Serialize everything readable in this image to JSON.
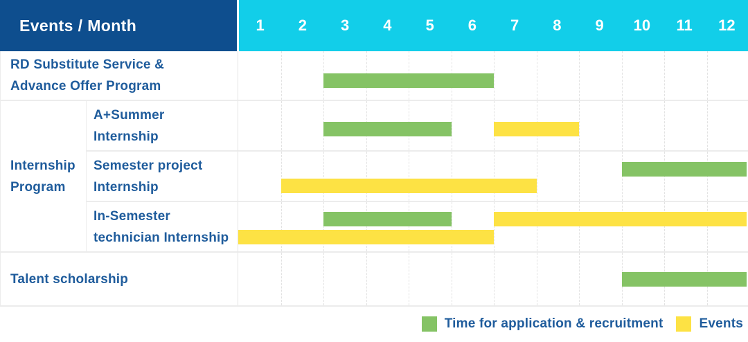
{
  "header": {
    "title": "Events / Month"
  },
  "colors": {
    "navy": "#0e4e8e",
    "cyan": "#12cee9",
    "green": "#85c365",
    "yellow": "#fde244",
    "text_blue": "#1f5c9c",
    "grid": "#ececec",
    "grid_dash": "#e2e2e2"
  },
  "chart_data": {
    "type": "gantt",
    "title": "Events / Month",
    "unit": "month",
    "x_range": [
      1,
      12
    ],
    "months": [
      "1",
      "2",
      "3",
      "4",
      "5",
      "6",
      "7",
      "8",
      "9",
      "10",
      "11",
      "12"
    ],
    "bar_colors": {
      "application": "#85c365",
      "event": "#fde244"
    },
    "group": {
      "label": "Internship Program",
      "lines": [
        "Internship",
        "Program"
      ]
    },
    "rows": [
      {
        "label": "RD Substitute Service & Advance Offer Program",
        "lines": [
          "RD Substitute Service &",
          "Advance Offer Program"
        ],
        "group": null,
        "bars": [
          {
            "type": "application",
            "start": 3,
            "end": 6,
            "line": 0
          }
        ]
      },
      {
        "label": "A+Summer Internship",
        "lines": [
          "A+Summer",
          "Internship"
        ],
        "group": "Internship Program",
        "bars": [
          {
            "type": "application",
            "start": 3,
            "end": 5,
            "line": 0
          },
          {
            "type": "event",
            "start": 7,
            "end": 8,
            "line": 0
          }
        ]
      },
      {
        "label": "Semester project Internship",
        "lines": [
          "Semester project",
          "Internship"
        ],
        "group": "Internship Program",
        "bars": [
          {
            "type": "application",
            "start": 10,
            "end": 12,
            "line": 0
          },
          {
            "type": "event",
            "start": 2,
            "end": 7,
            "line": 1
          }
        ]
      },
      {
        "label": "In-Semester technician Internship",
        "lines": [
          "In-Semester",
          "technician Internship"
        ],
        "group": "Internship Program",
        "bars": [
          {
            "type": "application",
            "start": 3,
            "end": 5,
            "line": 0
          },
          {
            "type": "event",
            "start": 7,
            "end": 12,
            "line": 0
          },
          {
            "type": "event",
            "start": 1,
            "end": 6,
            "line": 1
          }
        ]
      },
      {
        "label": "Talent scholarship",
        "lines": [
          "Talent scholarship"
        ],
        "group": null,
        "bars": [
          {
            "type": "application",
            "start": 10,
            "end": 12,
            "line": 0
          }
        ]
      }
    ],
    "legend": [
      {
        "label": "Time for application & recruitment",
        "type": "application",
        "color": "#85c365"
      },
      {
        "label": "Events",
        "type": "event",
        "color": "#fde244"
      }
    ]
  }
}
